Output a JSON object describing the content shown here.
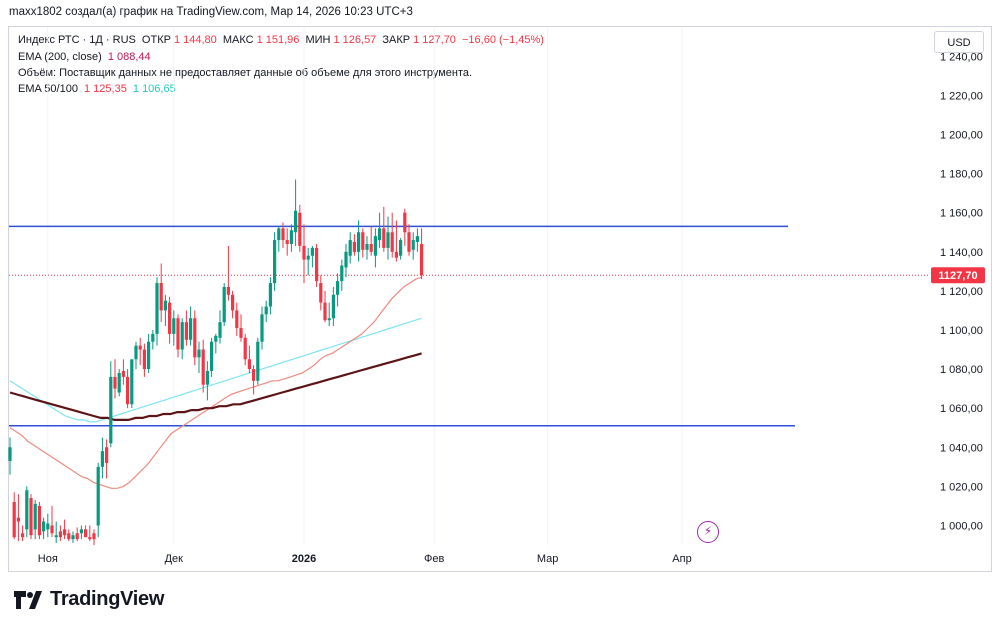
{
  "header": {
    "attribution": "maxx1802 создал(а) график на TradingView.com, Мар 14, 2026 10:23 UTC+3"
  },
  "legend": {
    "symbol": "Индекс РТС · 1Д · RUS",
    "open_label": "ОТКР",
    "open_value": "1 144,80",
    "high_label": "МАКС",
    "high_value": "1 151,96",
    "low_label": "МИН",
    "low_value": "1 126,57",
    "close_label": "ЗАКР",
    "close_value": "1 127,70",
    "change": "−16,60 (−1,45%)",
    "ema200_label": "EMA (200, close)",
    "ema200_value": "1 088,44",
    "volume_note": "Объём: Поставщик данных не предоставляет данные об объеме для этого инструмента.",
    "ema50100_label": "EMA 50/100",
    "ema50_value": "1 125,35",
    "ema100_value": "1 106,65"
  },
  "currency_button": "USD",
  "last_price_label": "1127,70",
  "colors": {
    "up": "#089981",
    "down": "#f23645",
    "ema50": "#ef8a80",
    "ema100": "#7fe3ef",
    "ema200": "#5d1416",
    "level": "#2f4fd8"
  },
  "icons": {
    "alert": "lightning-icon",
    "brand": "tradingview-logo-icon"
  },
  "brand": "TradingView",
  "chart_data": {
    "type": "candlestick",
    "title": "Индекс РТС · 1Д · RUS",
    "ylim": [
      990,
      1255
    ],
    "y_ticks": [
      1000,
      1020,
      1040,
      1060,
      1080,
      1100,
      1120,
      1140,
      1160,
      1180,
      1200,
      1220,
      1240
    ],
    "y_tick_labels": [
      "1 000,00",
      "1 020,00",
      "1 040,00",
      "1 060,00",
      "1 080,00",
      "1 100,00",
      "1 120,00",
      "1 140,00",
      "1 160,00",
      "1 180,00",
      "1 200,00",
      "1 220,00",
      "1 240,00"
    ],
    "x_tick_labels": [
      "Ноя",
      "Дек",
      "2026",
      "Фев",
      "Мар",
      "Апр"
    ],
    "x_tick_bar_index": [
      9,
      39,
      70,
      101,
      128,
      160
    ],
    "total_slots": 166,
    "horizontal_levels": [
      1153,
      1051
    ],
    "ohlc": [
      [
        1033,
        1045,
        1026,
        1040
      ],
      [
        1012,
        1017,
        993,
        994
      ],
      [
        1004,
        1016,
        992,
        1002
      ],
      [
        996,
        1000,
        992,
        994
      ],
      [
        998,
        1020,
        994,
        1018
      ],
      [
        1014,
        1016,
        993,
        995
      ],
      [
        998,
        1013,
        993,
        1011
      ],
      [
        1010,
        1012,
        993,
        995
      ],
      [
        997,
        1004,
        993,
        1002
      ],
      [
        998,
        1006,
        994,
        1001
      ],
      [
        1000,
        1010,
        994,
        996
      ],
      [
        994,
        1002,
        991,
        995
      ],
      [
        997,
        1000,
        992,
        994
      ],
      [
        998,
        1003,
        993,
        995
      ],
      [
        996,
        998,
        992,
        993
      ],
      [
        993,
        997,
        991,
        995
      ],
      [
        996,
        999,
        992,
        993
      ],
      [
        996,
        1000,
        993,
        998
      ],
      [
        998,
        1000,
        994,
        994
      ],
      [
        994,
        1000,
        992,
        993
      ],
      [
        996,
        998,
        990,
        993
      ],
      [
        1000,
        1032,
        994,
        1030
      ],
      [
        1030,
        1045,
        1024,
        1038
      ],
      [
        1040,
        1044,
        1024,
        1032
      ],
      [
        1042,
        1084,
        1040,
        1076
      ],
      [
        1076,
        1085,
        1065,
        1070
      ],
      [
        1068,
        1080,
        1066,
        1078
      ],
      [
        1079,
        1085,
        1072,
        1076
      ],
      [
        1076,
        1080,
        1060,
        1062
      ],
      [
        1062,
        1085,
        1060,
        1085
      ],
      [
        1085,
        1094,
        1080,
        1092
      ],
      [
        1092,
        1096,
        1082,
        1090
      ],
      [
        1090,
        1093,
        1076,
        1080
      ],
      [
        1080,
        1098,
        1078,
        1094
      ],
      [
        1094,
        1100,
        1090,
        1098
      ],
      [
        1098,
        1127,
        1092,
        1124
      ],
      [
        1124,
        1134,
        1104,
        1110
      ],
      [
        1110,
        1118,
        1102,
        1115
      ],
      [
        1114,
        1117,
        1093,
        1098
      ],
      [
        1098,
        1110,
        1092,
        1106
      ],
      [
        1106,
        1108,
        1086,
        1090
      ],
      [
        1090,
        1106,
        1085,
        1104
      ],
      [
        1104,
        1110,
        1092,
        1095
      ],
      [
        1095,
        1112,
        1092,
        1106
      ],
      [
        1106,
        1110,
        1082,
        1086
      ],
      [
        1086,
        1094,
        1078,
        1090
      ],
      [
        1090,
        1095,
        1068,
        1072
      ],
      [
        1072,
        1084,
        1064,
        1079
      ],
      [
        1079,
        1096,
        1076,
        1094
      ],
      [
        1094,
        1098,
        1088,
        1097
      ],
      [
        1096,
        1110,
        1093,
        1104
      ],
      [
        1104,
        1124,
        1102,
        1122
      ],
      [
        1122,
        1143,
        1115,
        1118
      ],
      [
        1118,
        1120,
        1106,
        1110
      ],
      [
        1110,
        1114,
        1097,
        1101
      ],
      [
        1101,
        1108,
        1094,
        1096
      ],
      [
        1096,
        1098,
        1082,
        1085
      ],
      [
        1085,
        1092,
        1078,
        1080
      ],
      [
        1080,
        1082,
        1067,
        1074
      ],
      [
        1074,
        1096,
        1072,
        1094
      ],
      [
        1094,
        1112,
        1090,
        1108
      ],
      [
        1108,
        1115,
        1104,
        1112
      ],
      [
        1112,
        1127,
        1108,
        1124
      ],
      [
        1124,
        1150,
        1120,
        1146
      ],
      [
        1146,
        1153,
        1140,
        1152
      ],
      [
        1152,
        1155,
        1142,
        1146
      ],
      [
        1146,
        1152,
        1138,
        1144
      ],
      [
        1144,
        1154,
        1140,
        1151
      ],
      [
        1150,
        1177,
        1143,
        1161
      ],
      [
        1160,
        1164,
        1140,
        1143
      ],
      [
        1143,
        1154,
        1124,
        1136
      ],
      [
        1136,
        1142,
        1128,
        1138
      ],
      [
        1138,
        1143,
        1132,
        1142
      ],
      [
        1142,
        1144,
        1122,
        1125
      ],
      [
        1124,
        1128,
        1110,
        1114
      ],
      [
        1114,
        1120,
        1104,
        1105
      ],
      [
        1105,
        1114,
        1102,
        1106
      ],
      [
        1106,
        1122,
        1102,
        1118
      ],
      [
        1118,
        1129,
        1112,
        1125
      ],
      [
        1125,
        1136,
        1120,
        1133
      ],
      [
        1132,
        1144,
        1127,
        1140
      ],
      [
        1138,
        1150,
        1134,
        1146
      ],
      [
        1145,
        1149,
        1138,
        1140
      ],
      [
        1140,
        1156,
        1135,
        1150
      ],
      [
        1150,
        1152,
        1137,
        1141
      ],
      [
        1141,
        1148,
        1136,
        1144
      ],
      [
        1144,
        1153,
        1138,
        1140
      ],
      [
        1138,
        1152,
        1132,
        1148
      ],
      [
        1146,
        1160,
        1142,
        1152
      ],
      [
        1152,
        1163,
        1140,
        1142
      ],
      [
        1142,
        1158,
        1136,
        1150
      ],
      [
        1150,
        1160,
        1137,
        1140
      ],
      [
        1140,
        1156,
        1135,
        1137
      ],
      [
        1138,
        1147,
        1136,
        1146
      ],
      [
        1160,
        1162,
        1143,
        1150
      ],
      [
        1150,
        1154,
        1138,
        1140
      ],
      [
        1141,
        1150,
        1136,
        1146
      ],
      [
        1145,
        1152,
        1140,
        1148
      ],
      [
        1144,
        1152,
        1126,
        1128
      ]
    ],
    "ema50": [
      1050,
      1048,
      1046,
      1043,
      1041,
      1039,
      1037,
      1035,
      1033,
      1031,
      1029,
      1027,
      1025,
      1024,
      1022,
      1021,
      1020,
      1019,
      1019,
      1020,
      1022,
      1025,
      1028,
      1031,
      1035,
      1039,
      1043,
      1047,
      1049,
      1051,
      1053,
      1055,
      1057,
      1059,
      1061,
      1063,
      1065,
      1067,
      1068,
      1069,
      1070,
      1071,
      1072,
      1073,
      1074,
      1074,
      1075,
      1076,
      1077,
      1078,
      1080,
      1082,
      1085,
      1087,
      1088,
      1090,
      1092,
      1094,
      1096,
      1098,
      1101,
      1104,
      1108,
      1112,
      1116,
      1119,
      1122,
      1124,
      1126,
      1127
    ],
    "ema100": [
      1074,
      1072,
      1070,
      1068,
      1066,
      1064,
      1062,
      1060,
      1058,
      1056,
      1055,
      1054,
      1054,
      1053,
      1053,
      1054,
      1055,
      1056,
      1057,
      1058,
      1059,
      1060,
      1061,
      1062,
      1063,
      1064,
      1065,
      1066,
      1067,
      1068,
      1069,
      1070,
      1071,
      1072,
      1073,
      1074,
      1075,
      1076,
      1077,
      1078,
      1079,
      1080,
      1081,
      1082,
      1083,
      1084,
      1085,
      1086,
      1087,
      1088,
      1089,
      1090,
      1091,
      1092,
      1093,
      1094,
      1095,
      1096,
      1097,
      1098,
      1099,
      1100,
      1101,
      1102,
      1103,
      1104,
      1105,
      1106
    ],
    "ema200": [
      1068,
      1067,
      1066,
      1065,
      1064,
      1063,
      1062,
      1061,
      1060,
      1059,
      1058,
      1057,
      1056,
      1055,
      1055,
      1054,
      1054,
      1054,
      1055,
      1055,
      1056,
      1056,
      1057,
      1057,
      1058,
      1058,
      1059,
      1059,
      1060,
      1060,
      1061,
      1061,
      1062,
      1062,
      1063,
      1064,
      1065,
      1066,
      1067,
      1068,
      1069,
      1070,
      1071,
      1072,
      1073,
      1074,
      1075,
      1076,
      1077,
      1078,
      1079,
      1080,
      1081,
      1082,
      1083,
      1084,
      1085,
      1086,
      1087,
      1088
    ]
  }
}
